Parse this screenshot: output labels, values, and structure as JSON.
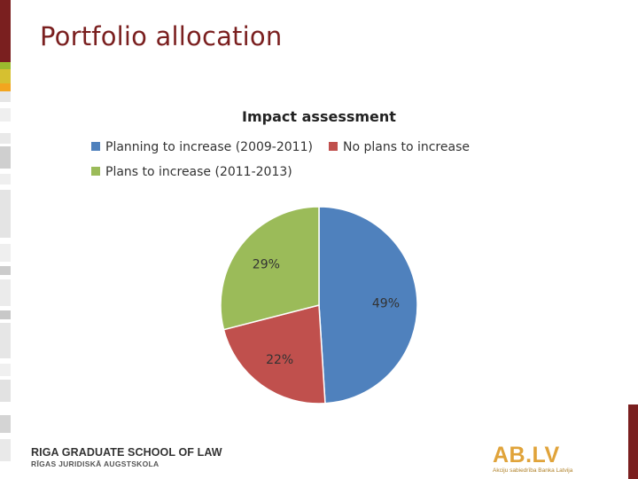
{
  "slide": {
    "title": "Portfolio allocation",
    "accent_color": "#7a1f1f"
  },
  "chart_data": {
    "type": "pie",
    "title": "Impact assessment",
    "series": [
      {
        "name": "Planning to increase (2009-2011)",
        "value": 49,
        "label": "49%",
        "color": "#4f81bd"
      },
      {
        "name": "No plans to increase",
        "value": 22,
        "label": "22%",
        "color": "#c0504d"
      },
      {
        "name": "Plans to increase (2011-2013)",
        "value": 29,
        "label": "29%",
        "color": "#9bbb59"
      }
    ],
    "legend_position": "top"
  },
  "footer": {
    "school_name": "RIGA GRADUATE SCHOOL OF LAW",
    "school_name_local": "RĪGAS JURIDISKĀ AUGSTSKOLA",
    "partner_logo_text": "AB.LV",
    "partner_subtext": "Akciju sabiedrība Banka Latvija"
  }
}
